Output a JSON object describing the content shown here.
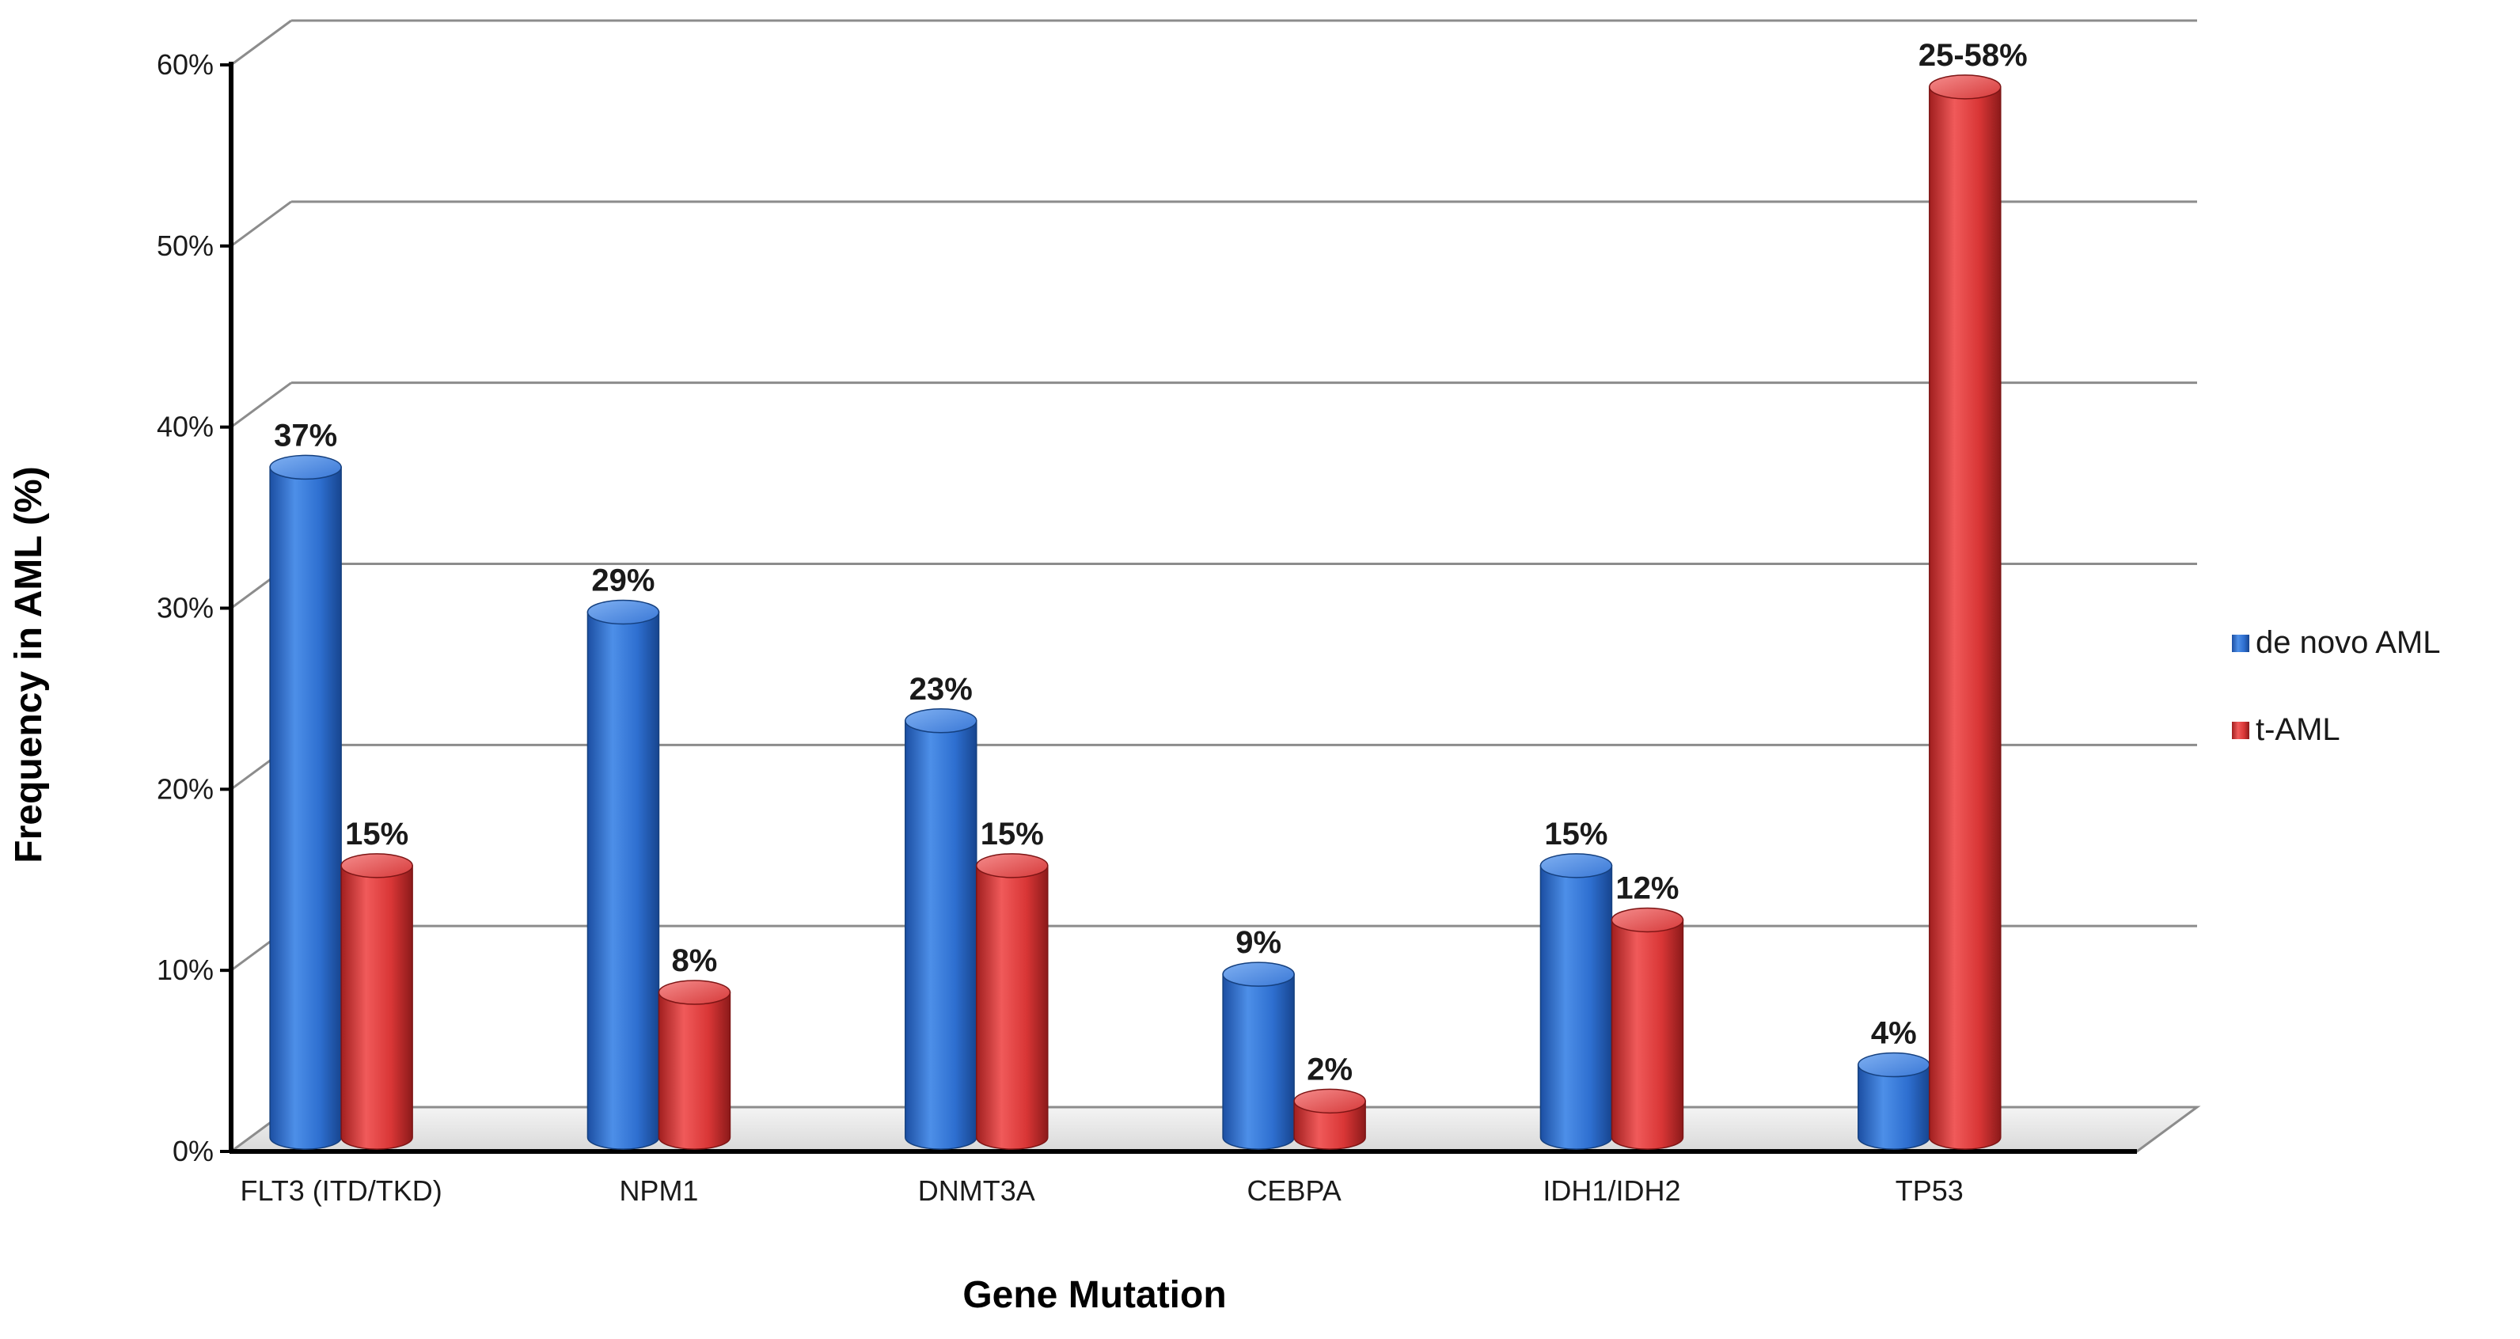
{
  "chart_data": {
    "type": "bar",
    "subtype": "3d-cylinder-clustered",
    "categories": [
      "FLT3 (ITD/TKD)",
      "NPM1",
      "DNMT3A",
      "CEBPA",
      "IDH1/IDH2",
      "TP53"
    ],
    "series": [
      {
        "name": "de novo AML",
        "color": "#2e6fd0",
        "values": [
          37,
          29,
          23,
          9,
          15,
          4
        ],
        "labels": [
          "37%",
          "29%",
          "23%",
          "9%",
          "15%",
          "4%"
        ]
      },
      {
        "name": "t-AML",
        "color": "#d93636",
        "values": [
          15,
          8,
          15,
          2,
          12,
          58
        ],
        "labels": [
          "15%",
          "8%",
          "15%",
          "2%",
          "12%",
          "25-58%"
        ]
      }
    ],
    "xlabel": "Gene Mutation",
    "ylabel": "Frequency in AML  (%)",
    "ylim": [
      0,
      60
    ],
    "yticks": [
      "0%",
      "10%",
      "20%",
      "30%",
      "40%",
      "50%",
      "60%"
    ],
    "grid": true,
    "legend_position": "right"
  }
}
